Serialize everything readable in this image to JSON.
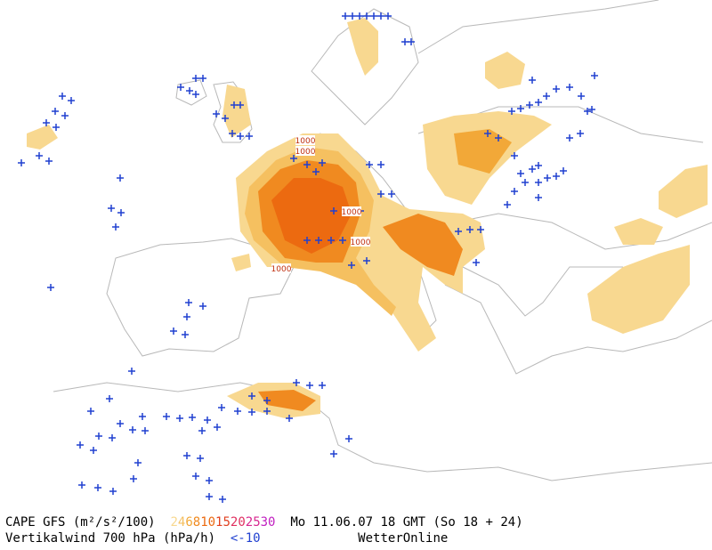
{
  "header": {
    "title": "CAPE GFS (m²/s²/100)",
    "date": "Mo 11.06.07 18 GMT (So 18 + 24)"
  },
  "cape_scale": [
    {
      "label": "2",
      "color": "#f8d890"
    },
    {
      "label": "4",
      "color": "#f5c060"
    },
    {
      "label": "6",
      "color": "#f2a838"
    },
    {
      "label": "8",
      "color": "#f08a20"
    },
    {
      "label": "10",
      "color": "#ec6a10"
    },
    {
      "label": "15",
      "color": "#e04020"
    },
    {
      "label": "20",
      "color": "#e03060"
    },
    {
      "label": "25",
      "color": "#d82890"
    },
    {
      "label": "30",
      "color": "#c020c0"
    }
  ],
  "wind": {
    "title": "Vertikalwind 700 hPa (hPa/h)",
    "label": "<-10",
    "color": "#2040d0"
  },
  "source": "WetterOnline",
  "isobar_labels": [
    "1000",
    "1000",
    "1000",
    "1000",
    "1000"
  ]
}
